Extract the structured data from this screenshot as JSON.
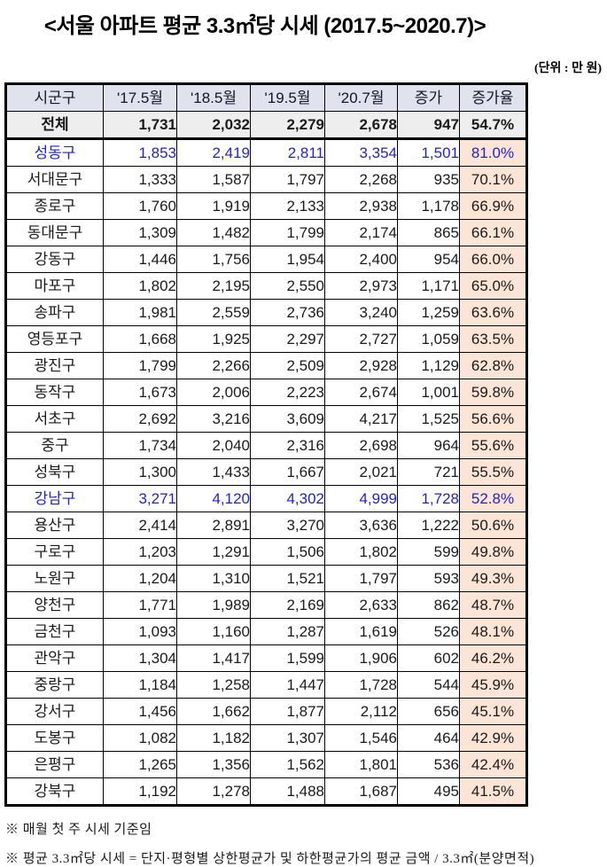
{
  "title": "<서울 아파트 평균 3.3㎡당 시세 (2017.5~2020.7)>",
  "unit_note": "(단위 : 만 원)",
  "table": {
    "columns": [
      "시군구",
      "'17.5월",
      "'18.5월",
      "'19.5월",
      "'20.7월",
      "증가",
      "증가율"
    ],
    "rows": [
      {
        "name": "전체",
        "values": [
          "1,731",
          "2,032",
          "2,279",
          "2,678",
          "947",
          "54.7%"
        ],
        "total": true
      },
      {
        "name": "성동구",
        "values": [
          "1,853",
          "2,419",
          "2,811",
          "3,354",
          "1,501",
          "81.0%"
        ],
        "emphasis": true
      },
      {
        "name": "서대문구",
        "values": [
          "1,333",
          "1,587",
          "1,797",
          "2,268",
          "935",
          "70.1%"
        ]
      },
      {
        "name": "종로구",
        "values": [
          "1,760",
          "1,919",
          "2,133",
          "2,938",
          "1,178",
          "66.9%"
        ]
      },
      {
        "name": "동대문구",
        "values": [
          "1,309",
          "1,482",
          "1,799",
          "2,174",
          "865",
          "66.1%"
        ]
      },
      {
        "name": "강동구",
        "values": [
          "1,446",
          "1,756",
          "1,954",
          "2,400",
          "954",
          "66.0%"
        ]
      },
      {
        "name": "마포구",
        "values": [
          "1,802",
          "2,195",
          "2,550",
          "2,973",
          "1,171",
          "65.0%"
        ]
      },
      {
        "name": "송파구",
        "values": [
          "1,981",
          "2,559",
          "2,736",
          "3,240",
          "1,259",
          "63.6%"
        ]
      },
      {
        "name": "영등포구",
        "values": [
          "1,668",
          "1,925",
          "2,297",
          "2,727",
          "1,059",
          "63.5%"
        ]
      },
      {
        "name": "광진구",
        "values": [
          "1,799",
          "2,266",
          "2,509",
          "2,928",
          "1,129",
          "62.8%"
        ]
      },
      {
        "name": "동작구",
        "values": [
          "1,673",
          "2,006",
          "2,223",
          "2,674",
          "1,001",
          "59.8%"
        ]
      },
      {
        "name": "서초구",
        "values": [
          "2,692",
          "3,216",
          "3,609",
          "4,217",
          "1,525",
          "56.6%"
        ]
      },
      {
        "name": "중구",
        "values": [
          "1,734",
          "2,040",
          "2,316",
          "2,698",
          "964",
          "55.6%"
        ],
        "border_gap": true
      },
      {
        "name": "성북구",
        "values": [
          "1,300",
          "1,433",
          "1,667",
          "2,021",
          "721",
          "55.5%"
        ]
      },
      {
        "name": "강남구",
        "values": [
          "3,271",
          "4,120",
          "4,302",
          "4,999",
          "1,728",
          "52.8%"
        ],
        "emphasis": true
      },
      {
        "name": "용산구",
        "values": [
          "2,414",
          "2,891",
          "3,270",
          "3,636",
          "1,222",
          "50.6%"
        ]
      },
      {
        "name": "구로구",
        "values": [
          "1,203",
          "1,291",
          "1,506",
          "1,802",
          "599",
          "49.8%"
        ]
      },
      {
        "name": "노원구",
        "values": [
          "1,204",
          "1,310",
          "1,521",
          "1,797",
          "593",
          "49.3%"
        ]
      },
      {
        "name": "양천구",
        "values": [
          "1,771",
          "1,989",
          "2,169",
          "2,633",
          "862",
          "48.7%"
        ]
      },
      {
        "name": "금천구",
        "values": [
          "1,093",
          "1,160",
          "1,287",
          "1,619",
          "526",
          "48.1%"
        ]
      },
      {
        "name": "관악구",
        "values": [
          "1,304",
          "1,417",
          "1,599",
          "1,906",
          "602",
          "46.2%"
        ]
      },
      {
        "name": "중랑구",
        "values": [
          "1,184",
          "1,258",
          "1,447",
          "1,728",
          "544",
          "45.9%"
        ]
      },
      {
        "name": "강서구",
        "values": [
          "1,456",
          "1,662",
          "1,877",
          "2,112",
          "656",
          "45.1%"
        ]
      },
      {
        "name": "도봉구",
        "values": [
          "1,082",
          "1,182",
          "1,307",
          "1,546",
          "464",
          "42.9%"
        ]
      },
      {
        "name": "은평구",
        "values": [
          "1,265",
          "1,356",
          "1,562",
          "1,801",
          "536",
          "42.4%"
        ]
      },
      {
        "name": "강북구",
        "values": [
          "1,192",
          "1,278",
          "1,488",
          "1,687",
          "495",
          "41.5%"
        ]
      }
    ]
  },
  "footnotes": [
    "※ 매월 첫 주 시세 기준임",
    "※ 평균 3.3㎡당 시세 = 단지·평형별 상한평균가 및 하한평균가의 평균 금액 / 3.3㎡(분양면적)"
  ],
  "colors": {
    "header_bg": "#e0e3ee",
    "total_bg": "#eeeeee",
    "rate_bg": "#fce4d6",
    "emphasis_text": "#2222cc",
    "border": "#000000"
  }
}
